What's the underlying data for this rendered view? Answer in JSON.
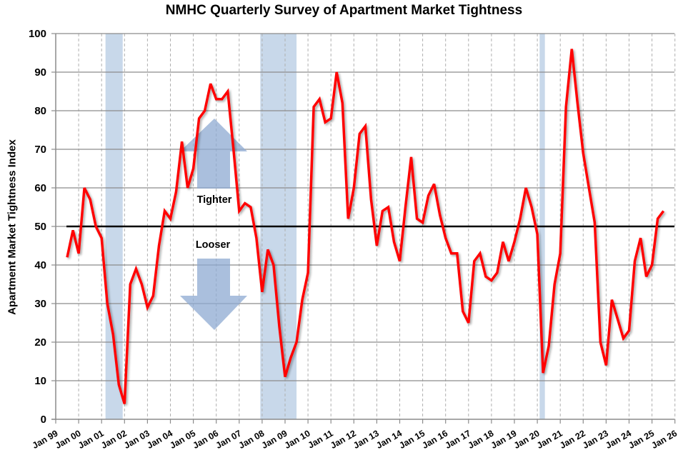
{
  "chart_data": {
    "type": "line",
    "title": "NMHC Quarterly Survey of Apartment Market Tightness",
    "xlabel": "",
    "ylabel": "Apartment Market Tightness Index",
    "ylim": [
      0,
      100
    ],
    "yticks": [
      0,
      10,
      20,
      30,
      40,
      50,
      60,
      70,
      80,
      90,
      100
    ],
    "xlim": [
      "Jan 99",
      "Jan 26"
    ],
    "xticks": [
      "Jan 99",
      "Jan 00",
      "Jan 01",
      "Jan 02",
      "Jan 03",
      "Jan 04",
      "Jan 05",
      "Jan 06",
      "Jan 07",
      "Jan 08",
      "Jan 09",
      "Jan 10",
      "Jan 11",
      "Jan 12",
      "Jan 13",
      "Jan 14",
      "Jan 15",
      "Jan 16",
      "Jan 17",
      "Jan 18",
      "Jan 19",
      "Jan 20",
      "Jan 21",
      "Jan 22",
      "Jan 23",
      "Jan 24",
      "Jan 25",
      "Jan 26"
    ],
    "grid": {
      "horizontal": "solid",
      "vertical": "dashed"
    },
    "reference_line": {
      "value": 50,
      "color": "#000000"
    },
    "recession_bands": [
      {
        "start": 2001.17,
        "end": 2001.92
      },
      {
        "start": 2007.92,
        "end": 2009.5
      },
      {
        "start": 2020.1,
        "end": 2020.33
      }
    ],
    "annotations": [
      {
        "text": "Tighter",
        "arrow": "up"
      },
      {
        "text": "Looser",
        "arrow": "down"
      }
    ],
    "series": [
      {
        "name": "Apartment Market Tightness Index",
        "color": "#ff0000",
        "start": "1999 Q3",
        "frequency": "quarterly",
        "values": [
          42,
          49,
          43,
          60,
          57,
          50,
          47,
          30,
          22,
          9,
          4,
          35,
          39,
          35,
          29,
          32,
          45,
          54,
          52,
          59,
          72,
          60,
          65,
          78,
          80,
          87,
          83,
          83,
          85,
          70,
          54,
          56,
          55,
          47,
          33,
          44,
          40,
          24,
          11,
          16,
          20,
          31,
          38,
          81,
          83,
          77,
          78,
          90,
          82,
          52,
          60,
          74,
          76,
          57,
          45,
          54,
          55,
          46,
          41,
          55,
          68,
          52,
          51,
          58,
          61,
          53,
          47,
          43,
          43,
          28,
          25,
          41,
          43,
          37,
          36,
          38,
          46,
          41,
          46,
          52,
          60,
          55,
          48,
          12,
          19,
          35,
          43,
          81,
          96,
          82,
          69,
          60,
          51,
          20,
          14,
          31,
          26,
          21,
          23,
          41,
          47,
          37,
          40,
          52,
          54
        ]
      }
    ]
  },
  "colors": {
    "line": "#ff0000",
    "band": "#c8d8ea",
    "arrow": "#8eaad2",
    "gridline": "#8c8c8c",
    "reference": "#000000"
  }
}
